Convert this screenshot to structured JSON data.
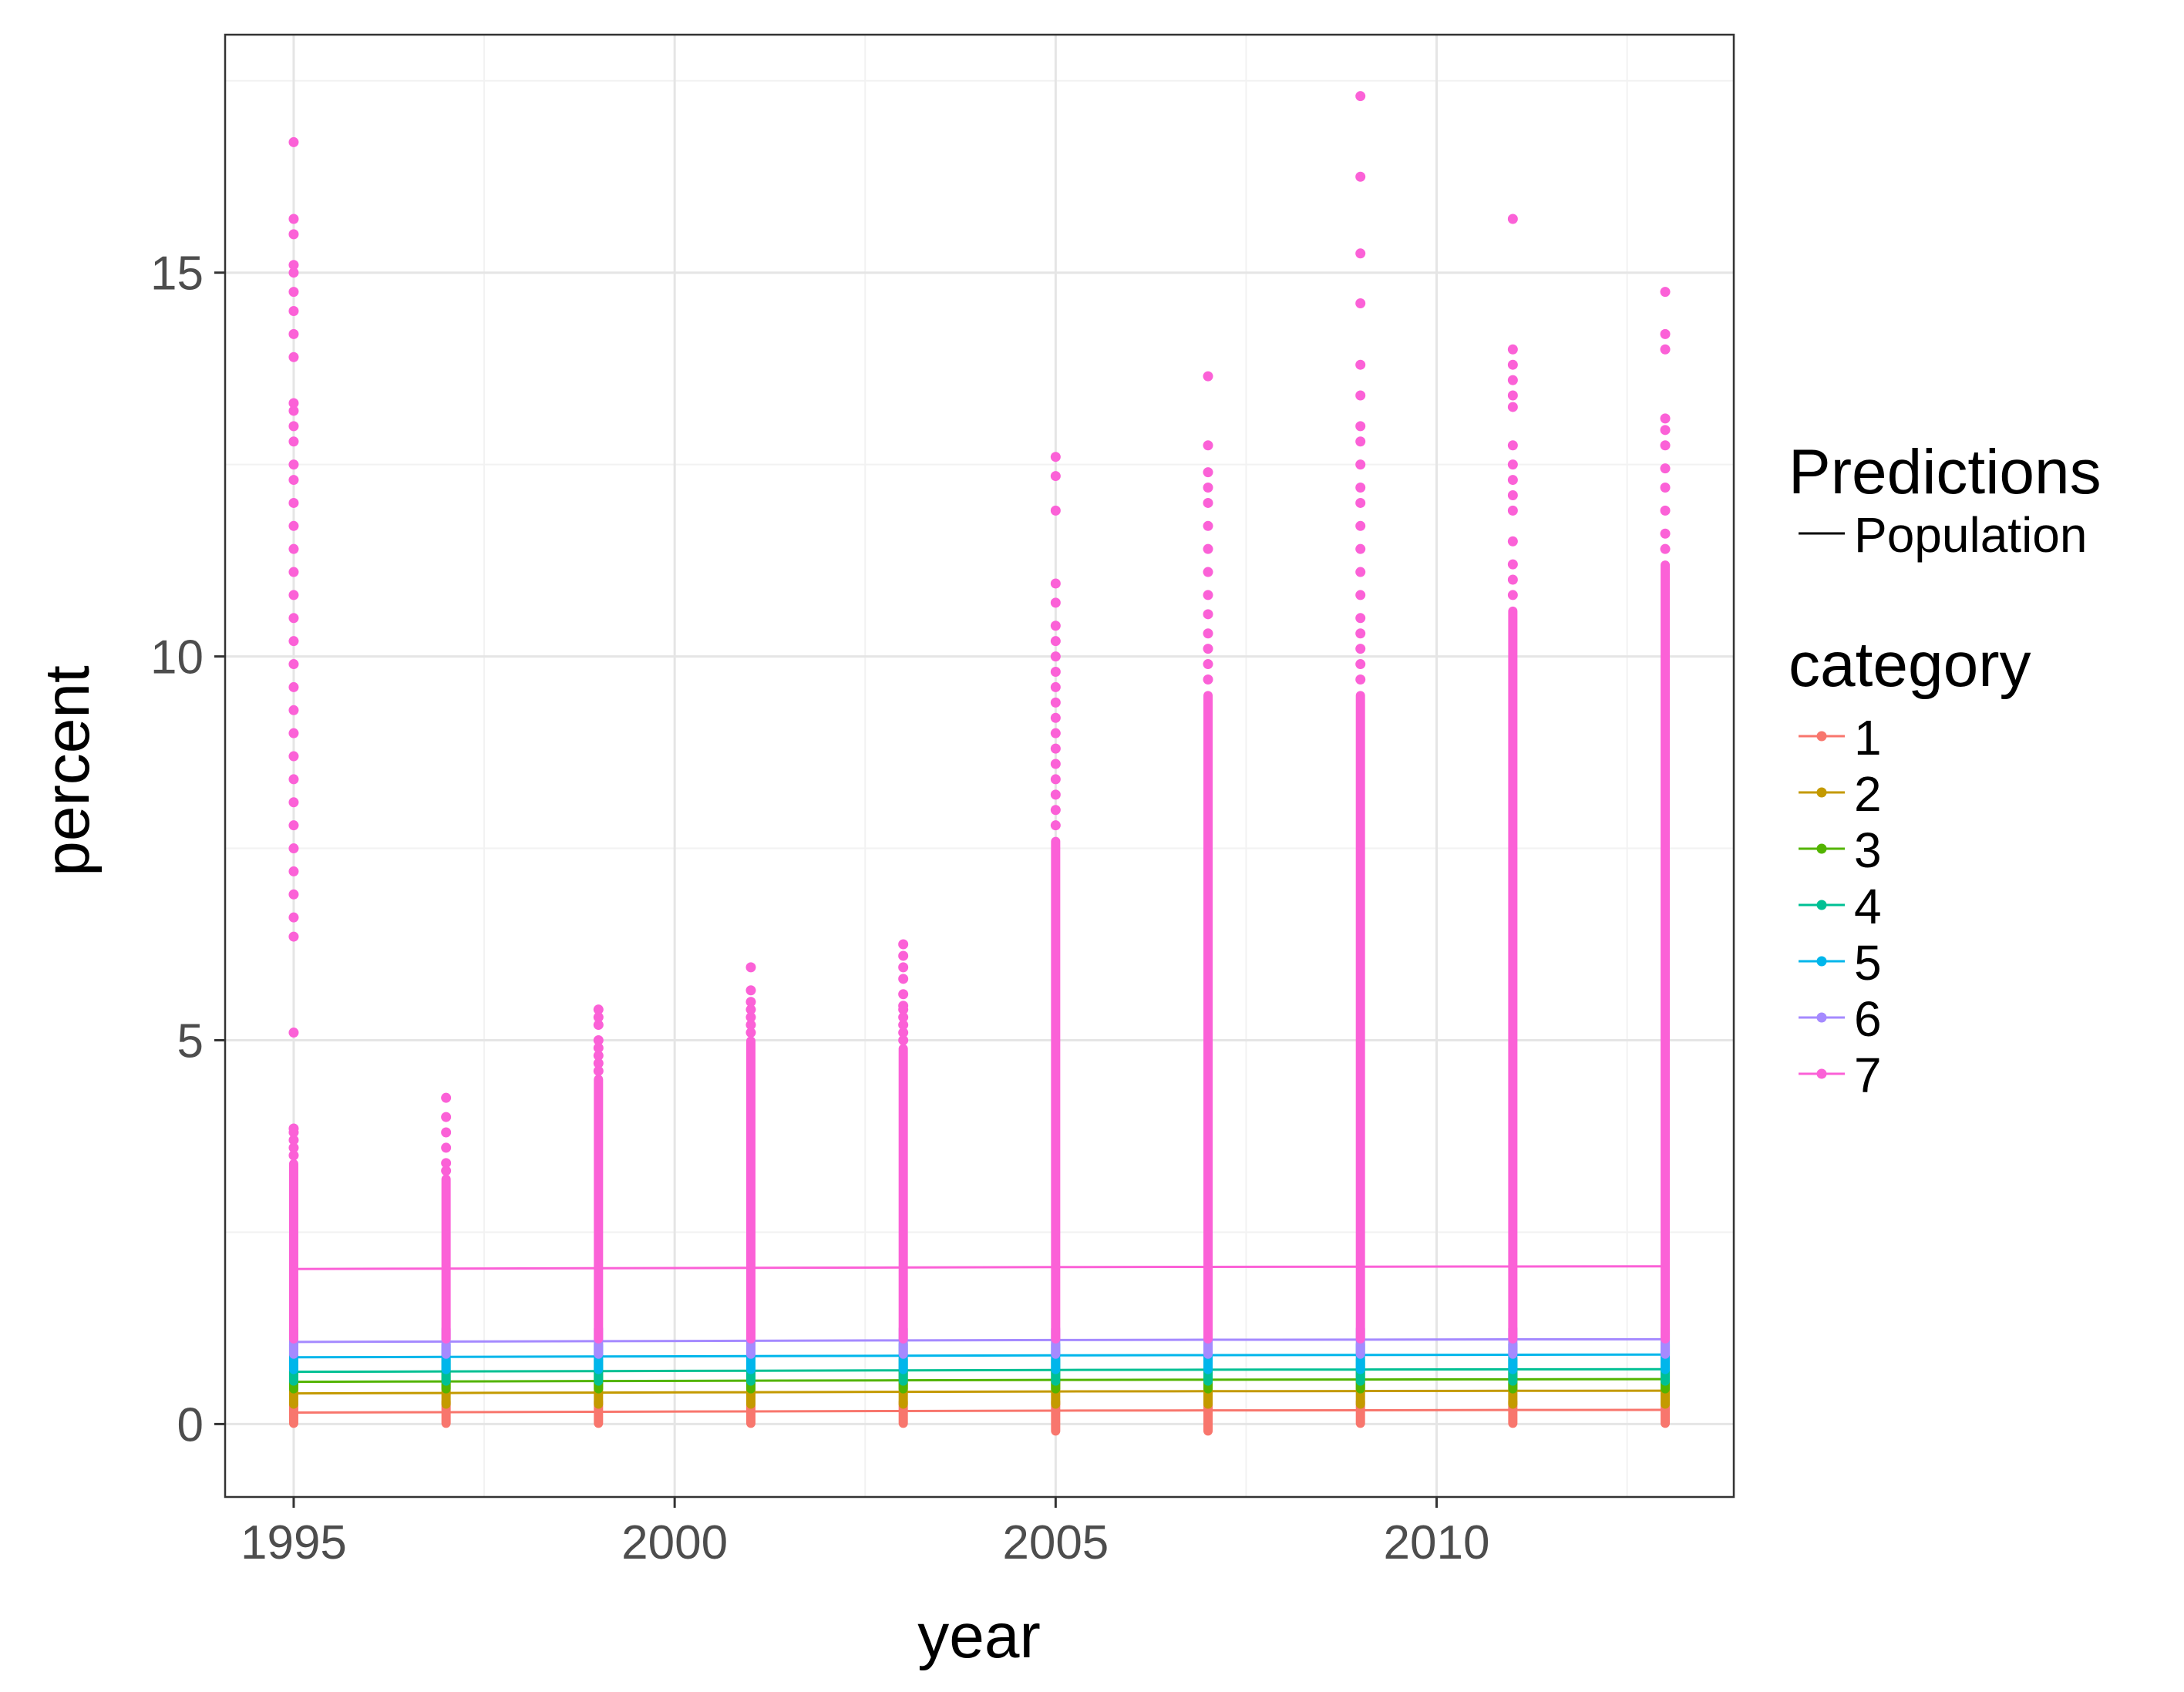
{
  "chart_data": {
    "type": "scatter",
    "xlabel": "year",
    "ylabel": "percent",
    "xlim": [
      1994.1,
      2013.9
    ],
    "ylim": [
      -0.95,
      18.1
    ],
    "x_ticks": [
      1995,
      2000,
      2005,
      2010
    ],
    "x_tick_labels": [
      "1995",
      "2000",
      "2005",
      "2010"
    ],
    "y_ticks": [
      0,
      5,
      10,
      15
    ],
    "y_tick_labels": [
      "0",
      "5",
      "10",
      "15"
    ],
    "grid": true,
    "legend_position": "right",
    "legend": {
      "predictions": {
        "title": "Predictions",
        "items": [
          {
            "label": "Population"
          }
        ]
      },
      "category": {
        "title": "category",
        "items": [
          {
            "label": "1",
            "color": "#F8766D"
          },
          {
            "label": "2",
            "color": "#C49A00"
          },
          {
            "label": "3",
            "color": "#53B400"
          },
          {
            "label": "4",
            "color": "#00C094"
          },
          {
            "label": "5",
            "color": "#00B6EB"
          },
          {
            "label": "6",
            "color": "#A58AFF"
          },
          {
            "label": "7",
            "color": "#FB61D7"
          }
        ]
      }
    },
    "years": [
      1995,
      1997,
      1999,
      2001,
      2003,
      2005,
      2007,
      2009,
      2011,
      2013
    ],
    "prediction_lines": [
      {
        "name": "1",
        "color": "#F8766D",
        "values": [
          0.15,
          0.155,
          0.16,
          0.165,
          0.17,
          0.175,
          0.178,
          0.18,
          0.183,
          0.185
        ]
      },
      {
        "name": "2",
        "color": "#C49A00",
        "values": [
          0.4,
          0.405,
          0.41,
          0.415,
          0.42,
          0.425,
          0.428,
          0.43,
          0.433,
          0.435
        ]
      },
      {
        "name": "3",
        "color": "#53B400",
        "values": [
          0.55,
          0.555,
          0.56,
          0.565,
          0.57,
          0.575,
          0.578,
          0.58,
          0.583,
          0.585
        ]
      },
      {
        "name": "4",
        "color": "#00C094",
        "values": [
          0.68,
          0.685,
          0.69,
          0.695,
          0.7,
          0.705,
          0.708,
          0.71,
          0.713,
          0.715
        ]
      },
      {
        "name": "5",
        "color": "#00B6EB",
        "values": [
          0.87,
          0.875,
          0.88,
          0.885,
          0.89,
          0.895,
          0.898,
          0.9,
          0.903,
          0.905
        ]
      },
      {
        "name": "6",
        "color": "#A58AFF",
        "values": [
          1.07,
          1.075,
          1.08,
          1.085,
          1.09,
          1.095,
          1.098,
          1.1,
          1.103,
          1.105
        ]
      },
      {
        "name": "7",
        "color": "#FB61D7",
        "values": [
          2.02,
          2.025,
          2.03,
          2.035,
          2.04,
          2.045,
          2.048,
          2.05,
          2.053,
          2.055
        ]
      }
    ],
    "point_columns": [
      {
        "year": 1995,
        "category_ranges": [
          [
            0.0,
            0.3
          ],
          [
            0.25,
            0.55
          ],
          [
            0.45,
            0.7
          ],
          [
            0.55,
            0.85
          ],
          [
            0.7,
            1.05
          ],
          [
            0.9,
            1.25
          ],
          [
            1.1,
            3.4
          ]
        ],
        "outliers": [
          3.5,
          3.6,
          3.7,
          3.8,
          3.85,
          5.1,
          6.35,
          6.6,
          6.9,
          7.2,
          7.5,
          7.8,
          8.1,
          8.4,
          8.7,
          9.0,
          9.3,
          9.6,
          9.9,
          10.2,
          10.5,
          10.8,
          11.1,
          11.4,
          11.7,
          12.0,
          12.3,
          12.5,
          12.8,
          13.0,
          13.2,
          13.3,
          13.9,
          14.2,
          14.5,
          14.75,
          15.0,
          15.1,
          15.5,
          15.7,
          16.7
        ]
      },
      {
        "year": 1997,
        "category_ranges": [
          [
            0.0,
            0.3
          ],
          [
            0.25,
            0.55
          ],
          [
            0.45,
            0.7
          ],
          [
            0.55,
            0.85
          ],
          [
            0.7,
            1.05
          ],
          [
            0.9,
            1.25
          ],
          [
            1.1,
            3.2
          ]
        ],
        "outliers": [
          3.3,
          3.4,
          3.6,
          3.8,
          4.0,
          4.25
        ]
      },
      {
        "year": 1999,
        "category_ranges": [
          [
            0.0,
            0.3
          ],
          [
            0.25,
            0.55
          ],
          [
            0.45,
            0.7
          ],
          [
            0.55,
            0.85
          ],
          [
            0.7,
            1.05
          ],
          [
            0.9,
            1.25
          ],
          [
            1.1,
            4.5
          ]
        ],
        "outliers": [
          4.6,
          4.7,
          4.8,
          4.9,
          5.0,
          5.2,
          5.3,
          5.4
        ]
      },
      {
        "year": 2001,
        "category_ranges": [
          [
            0.0,
            0.3
          ],
          [
            0.25,
            0.55
          ],
          [
            0.45,
            0.7
          ],
          [
            0.55,
            0.85
          ],
          [
            0.7,
            1.05
          ],
          [
            0.9,
            1.25
          ],
          [
            1.1,
            5.0
          ]
        ],
        "outliers": [
          5.1,
          5.2,
          5.3,
          5.4,
          5.5,
          5.65,
          5.95
        ]
      },
      {
        "year": 2003,
        "category_ranges": [
          [
            0.0,
            0.3
          ],
          [
            0.25,
            0.55
          ],
          [
            0.45,
            0.7
          ],
          [
            0.55,
            0.85
          ],
          [
            0.7,
            1.05
          ],
          [
            0.9,
            1.25
          ],
          [
            1.1,
            4.9
          ]
        ],
        "outliers": [
          5.0,
          5.1,
          5.2,
          5.3,
          5.4,
          5.45,
          5.6,
          5.8,
          5.95,
          6.1,
          6.25
        ]
      },
      {
        "year": 2005,
        "category_ranges": [
          [
            -0.1,
            0.3
          ],
          [
            0.25,
            0.55
          ],
          [
            0.45,
            0.7
          ],
          [
            0.55,
            0.85
          ],
          [
            0.7,
            1.05
          ],
          [
            0.9,
            1.25
          ],
          [
            1.1,
            7.6
          ]
        ],
        "outliers": [
          7.8,
          8.0,
          8.2,
          8.4,
          8.6,
          8.8,
          9.0,
          9.2,
          9.4,
          9.6,
          9.8,
          10.0,
          10.2,
          10.4,
          10.7,
          10.95,
          11.9,
          12.35,
          12.6
        ]
      },
      {
        "year": 2007,
        "category_ranges": [
          [
            -0.1,
            0.3
          ],
          [
            0.25,
            0.55
          ],
          [
            0.45,
            0.7
          ],
          [
            0.55,
            0.85
          ],
          [
            0.7,
            1.05
          ],
          [
            0.9,
            1.25
          ],
          [
            1.1,
            9.5
          ]
        ],
        "outliers": [
          9.7,
          9.9,
          10.1,
          10.3,
          10.55,
          10.8,
          11.1,
          11.4,
          11.7,
          12.0,
          12.2,
          12.4,
          12.75,
          13.65
        ]
      },
      {
        "year": 2009,
        "category_ranges": [
          [
            0.0,
            0.3
          ],
          [
            0.25,
            0.55
          ],
          [
            0.45,
            0.7
          ],
          [
            0.55,
            0.85
          ],
          [
            0.7,
            1.05
          ],
          [
            0.9,
            1.25
          ],
          [
            1.1,
            9.5
          ]
        ],
        "outliers": [
          9.7,
          9.9,
          10.1,
          10.3,
          10.5,
          10.8,
          11.1,
          11.4,
          11.7,
          12.0,
          12.2,
          12.5,
          12.8,
          13.0,
          13.4,
          13.8,
          14.6,
          15.25,
          16.25,
          17.3
        ]
      },
      {
        "year": 2011,
        "category_ranges": [
          [
            0.0,
            0.3
          ],
          [
            0.25,
            0.55
          ],
          [
            0.45,
            0.7
          ],
          [
            0.55,
            0.85
          ],
          [
            0.7,
            1.05
          ],
          [
            0.9,
            1.25
          ],
          [
            1.1,
            10.6
          ]
        ],
        "outliers": [
          10.8,
          11.0,
          11.2,
          11.5,
          11.9,
          12.1,
          12.3,
          12.5,
          12.75,
          13.25,
          13.4,
          13.6,
          13.8,
          14.0,
          15.7
        ]
      },
      {
        "year": 2013,
        "category_ranges": [
          [
            0.0,
            0.3
          ],
          [
            0.25,
            0.55
          ],
          [
            0.45,
            0.7
          ],
          [
            0.55,
            0.85
          ],
          [
            0.7,
            1.05
          ],
          [
            0.9,
            1.25
          ],
          [
            1.1,
            11.2
          ]
        ],
        "outliers": [
          11.4,
          11.6,
          11.9,
          12.2,
          12.45,
          12.75,
          12.95,
          13.1,
          14.0,
          14.2,
          14.75
        ]
      }
    ]
  }
}
